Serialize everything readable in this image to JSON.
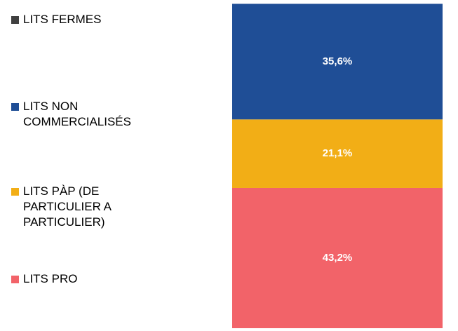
{
  "chart_data": {
    "type": "stacked_bar",
    "ylim": [
      0,
      100
    ],
    "series": [
      {
        "name": "LITS FERMES",
        "color": "#404040",
        "values": [
          0
        ]
      },
      {
        "name": "LITS NON COMMERCIALISÉS",
        "color": "#1f4e96",
        "values": [
          35.6
        ],
        "value_labels": [
          "35,6%"
        ]
      },
      {
        "name": "LITS PÀP (DE PARTICULIER A PARTICULIER)",
        "color": "#f2ae16",
        "values": [
          21.1
        ],
        "value_labels": [
          "21,1%"
        ]
      },
      {
        "name": "LITS PRO",
        "color": "#f26369",
        "values": [
          43.2
        ],
        "value_labels": [
          "43,2%"
        ]
      }
    ]
  }
}
